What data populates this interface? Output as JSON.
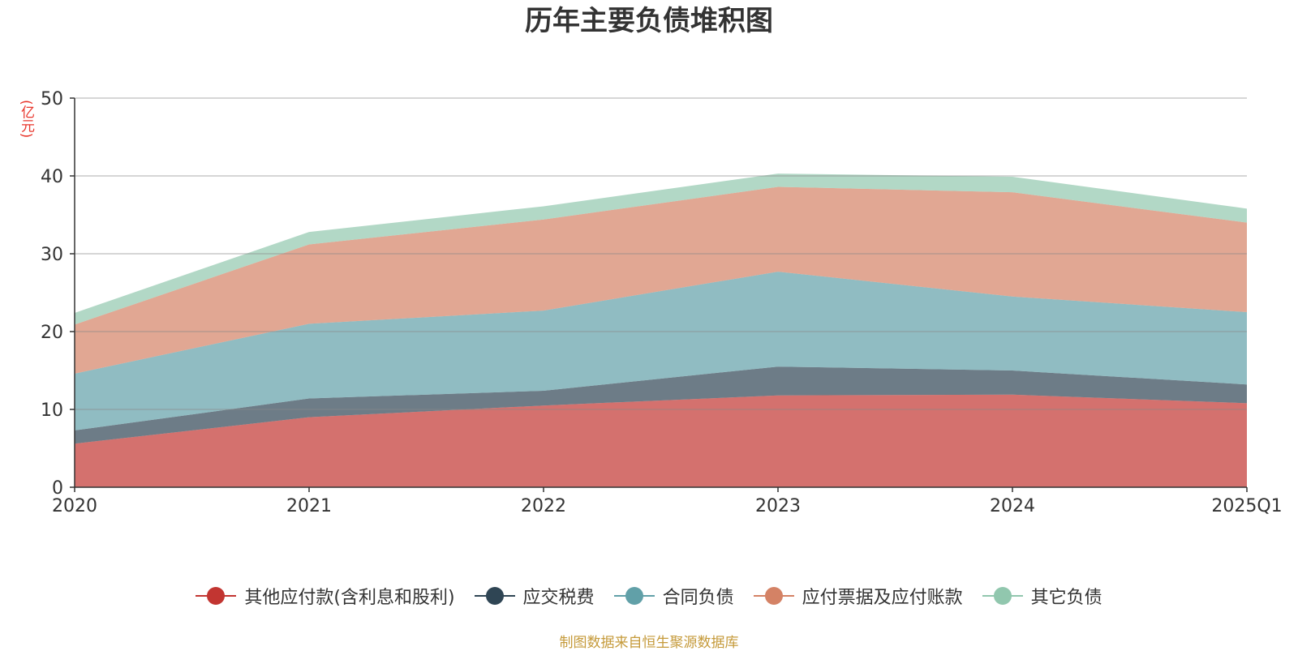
{
  "title": "历年主要负债堆积图",
  "unit_label": "(亿元)",
  "source": "制图数据来自恒生聚源数据库",
  "chart_data": {
    "type": "area",
    "stacked": true,
    "title": "历年主要负债堆积图",
    "ylabel": "(亿元)",
    "x": [
      "2020",
      "2021",
      "2022",
      "2023",
      "2024",
      "2025Q1"
    ],
    "ylim": [
      0,
      50
    ],
    "yticks": [
      0,
      10,
      20,
      30,
      40,
      50
    ],
    "grid": true,
    "legend_position": "bottom",
    "series": [
      {
        "name": "其他应付款(含利息和股利)",
        "color": "#c23531",
        "values": [
          5.6,
          9.0,
          10.5,
          11.8,
          11.9,
          10.8
        ]
      },
      {
        "name": "应交税费",
        "color": "#2f4554",
        "values": [
          1.7,
          2.4,
          1.9,
          3.7,
          3.1,
          2.4
        ]
      },
      {
        "name": "合同负债",
        "color": "#61a0a8",
        "values": [
          7.3,
          9.6,
          10.3,
          12.2,
          9.5,
          9.3
        ]
      },
      {
        "name": "应付票据及应付账款",
        "color": "#d48265",
        "values": [
          6.3,
          10.2,
          11.7,
          10.9,
          13.4,
          11.5
        ]
      },
      {
        "name": "其它负债",
        "color": "#91c7ae",
        "values": [
          1.5,
          1.6,
          1.7,
          1.7,
          2.0,
          1.8
        ]
      }
    ]
  }
}
